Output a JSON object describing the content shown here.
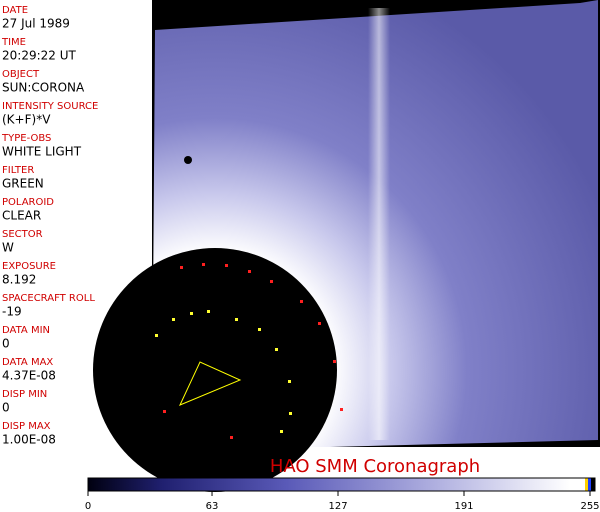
{
  "fields": [
    {
      "label": "DATE",
      "value": "27 Jul 1989"
    },
    {
      "label": "TIME",
      "value": "20:29:22 UT"
    },
    {
      "label": "OBJECT",
      "value": "SUN:CORONA"
    },
    {
      "label": "INTENSITY SOURCE",
      "value": "(K+F)*V"
    },
    {
      "label": "TYPE-OBS",
      "value": "WHITE LIGHT"
    },
    {
      "label": "FILTER",
      "value": "GREEN"
    },
    {
      "label": "POLAROID",
      "value": "CLEAR"
    },
    {
      "label": "SECTOR",
      "value": "W"
    },
    {
      "label": "EXPOSURE",
      "value": "8.192"
    },
    {
      "label": "SPACECRAFT ROLL",
      "value": "-19"
    },
    {
      "label": "DATA MIN",
      "value": "0"
    },
    {
      "label": "DATA MAX",
      "value": "4.37E-08"
    },
    {
      "label": "DISP MIN",
      "value": "0"
    },
    {
      "label": "DISP MAX",
      "value": "1.00E-08"
    }
  ],
  "title": "HAO   SMM Coronagraph",
  "colorbar": {
    "ticks": [
      0,
      63,
      127,
      191,
      255
    ]
  }
}
